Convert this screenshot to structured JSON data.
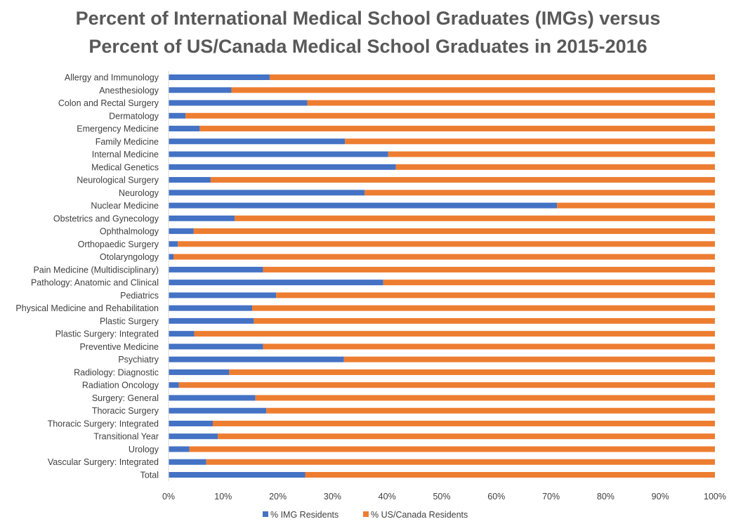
{
  "chart_data": {
    "type": "bar",
    "orientation": "horizontal",
    "stacked": "percent",
    "title_lines": [
      "Percent of International Medical School Graduates (IMGs) versus",
      "Percent of US/Canada Medical School Graduates in 2015-2016"
    ],
    "categories": [
      "Allergy and Immunology",
      "Anesthesiology",
      "Colon and Rectal Surgery",
      "Dermatology",
      "Emergency Medicine",
      "Family Medicine",
      "Internal Medicine",
      "Medical Genetics",
      "Neurological Surgery",
      "Neurology",
      "Nuclear Medicine",
      "Obstetrics and Gynecology",
      "Ophthalmology",
      "Orthopaedic Surgery",
      "Otolaryngology",
      "Pain Medicine (Multidisciplinary)",
      "Pathology: Anatomic and Clinical",
      "Pediatrics",
      "Physical Medicine and Rehabilitation",
      "Plastic Surgery",
      "Plastic Surgery: Integrated",
      "Preventive Medicine",
      "Psychiatry",
      "Radiology: Diagnostic",
      "Radiation Oncology",
      "Surgery: General",
      "Thoracic Surgery",
      "Thoracic Surgery: Integrated",
      "Transitional Year",
      "Urology",
      "Vascular Surgery: Integrated",
      "Total"
    ],
    "series": [
      {
        "name": "% IMG Residents",
        "color": "#4472C4",
        "values": [
          18.5,
          11.5,
          25.4,
          3.1,
          5.7,
          32.3,
          40.2,
          41.6,
          7.7,
          35.9,
          71.1,
          12.1,
          4.6,
          1.7,
          0.9,
          17.3,
          39.3,
          19.7,
          15.3,
          15.6,
          4.7,
          17.3,
          32.1,
          11.1,
          1.9,
          15.9,
          17.9,
          8.1,
          9.0,
          3.8,
          6.9,
          25.0
        ]
      },
      {
        "name": "% US/Canada Residents",
        "color": "#ED7D31",
        "values": [
          81.5,
          88.5,
          74.6,
          96.9,
          94.3,
          67.7,
          59.8,
          58.4,
          92.3,
          64.1,
          28.9,
          87.9,
          95.4,
          98.3,
          99.1,
          82.7,
          60.7,
          80.3,
          84.7,
          84.4,
          95.3,
          82.7,
          67.9,
          88.9,
          98.1,
          84.1,
          82.1,
          91.9,
          91.0,
          96.2,
          93.1,
          75.0
        ]
      }
    ],
    "x_ticks": [
      "0%",
      "10%",
      "20%",
      "30%",
      "40%",
      "50%",
      "60%",
      "70%",
      "80%",
      "90%",
      "100%"
    ],
    "xlim": [
      0,
      100
    ],
    "grid": false,
    "legend_position": "bottom"
  }
}
